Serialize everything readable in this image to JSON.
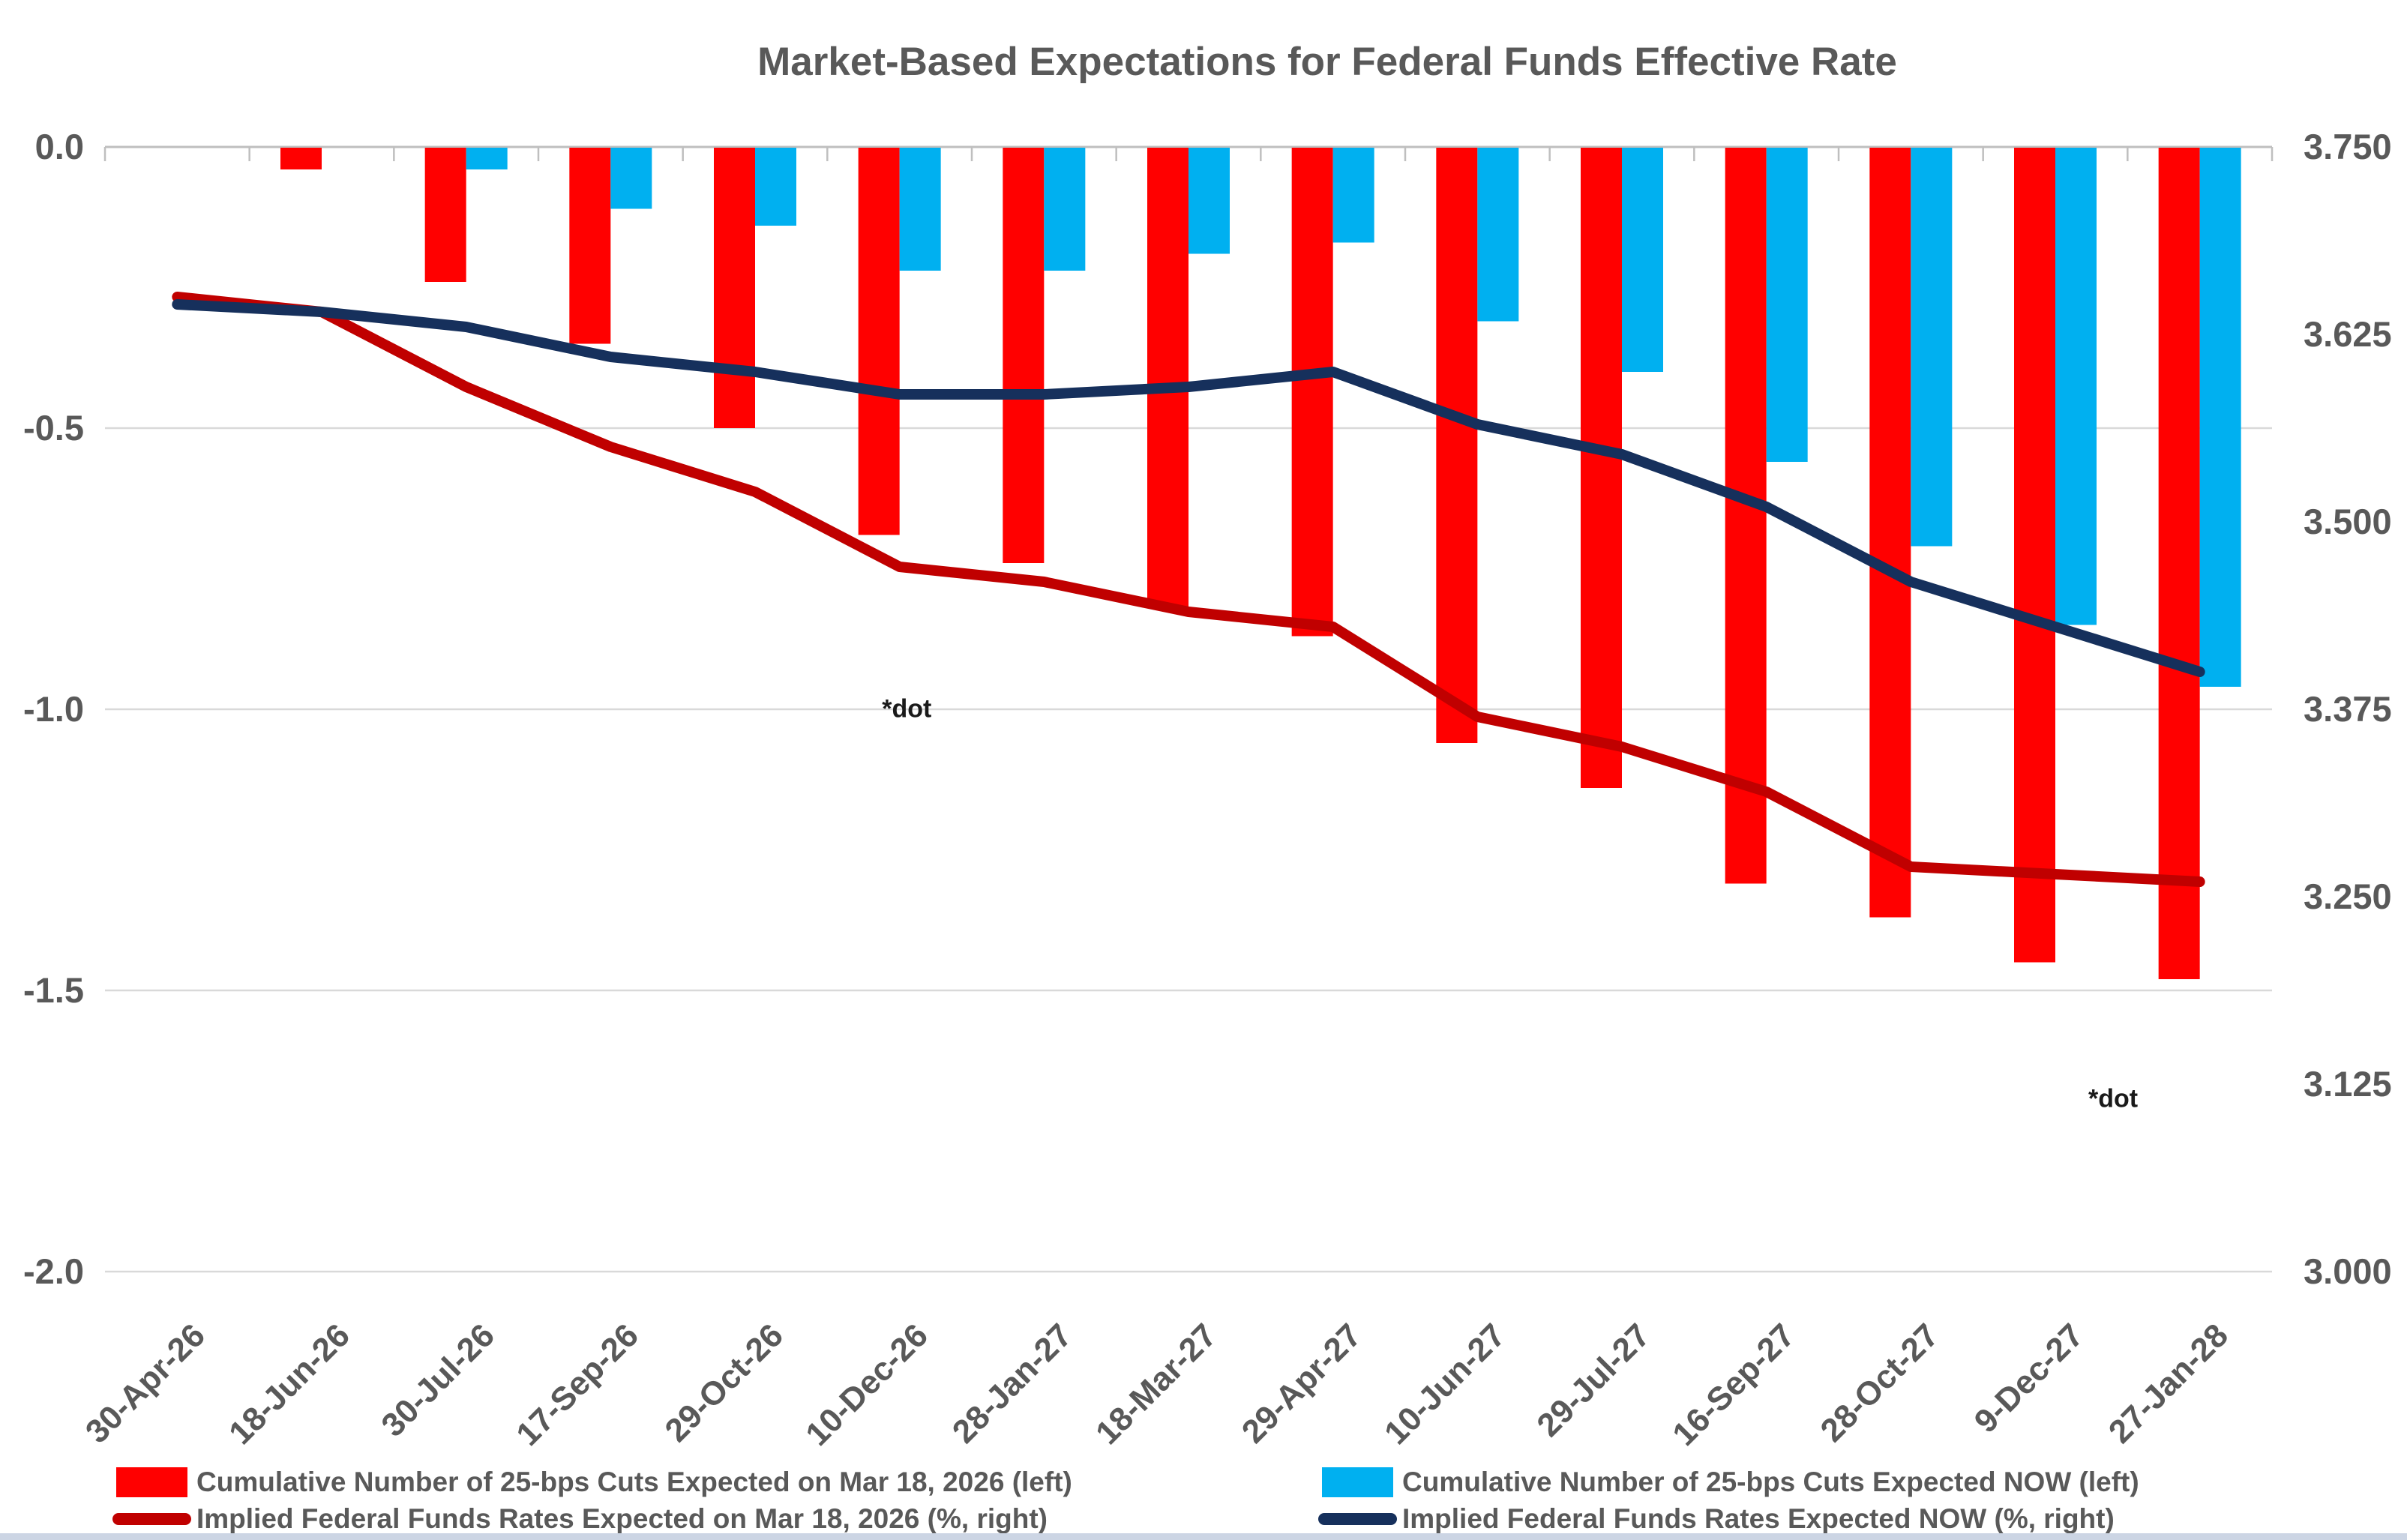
{
  "title": "Market-Based Expectations for Federal Funds Effective Rate",
  "colors": {
    "red_bar": "#FF0000",
    "blue_bar": "#00B0F0",
    "dark_red_line": "#C00000",
    "navy_line": "#16305C",
    "text": "#595959",
    "gridline": "#D9D9D9",
    "axis_line": "#BFBFBF"
  },
  "chart_data": {
    "type": "bar",
    "subtype": "combo-bar-line-dual-axis",
    "title": "Market-Based Expectations for Federal Funds Effective Rate",
    "categories": [
      "30-Apr-26",
      "18-Jun-26",
      "30-Jul-26",
      "17-Sep-26",
      "29-Oct-26",
      "10-Dec-26",
      "28-Jan-27",
      "18-Mar-27",
      "29-Apr-27",
      "10-Jun-27",
      "29-Jul-27",
      "16-Sep-27",
      "28-Oct-27",
      "9-Dec-27",
      "27-Jan-28"
    ],
    "series": [
      {
        "name": "Cumulative Number of 25-bps Cuts Expected on Mar 18, 2026 (left)",
        "type": "bar",
        "axis": "left",
        "color_key": "red_bar",
        "values": [
          0,
          -0.04,
          -0.24,
          -0.35,
          -0.5,
          -0.69,
          -0.74,
          -0.82,
          -0.87,
          -1.06,
          -1.14,
          -1.31,
          -1.37,
          -1.45,
          -1.48
        ]
      },
      {
        "name": "Cumulative Number of 25-bps Cuts Expected NOW (left)",
        "type": "bar",
        "axis": "left",
        "color_key": "blue_bar",
        "values": [
          0,
          0,
          -0.04,
          -0.11,
          -0.14,
          -0.22,
          -0.22,
          -0.19,
          -0.17,
          -0.31,
          -0.4,
          -0.56,
          -0.71,
          -0.85,
          -0.96
        ]
      },
      {
        "name": "Implied Federal Funds Rates Expected on Mar 18, 2026 (%, right)",
        "type": "line",
        "axis": "right",
        "color_key": "dark_red_line",
        "values": [
          3.65,
          3.64,
          3.59,
          3.55,
          3.52,
          3.47,
          3.46,
          3.44,
          3.43,
          3.37,
          3.35,
          3.32,
          3.27,
          3.265,
          3.26
        ]
      },
      {
        "name": "Implied Federal Funds Rates Expected NOW (%, right)",
        "type": "line",
        "axis": "right",
        "color_key": "navy_line",
        "values": [
          3.645,
          3.64,
          3.63,
          3.61,
          3.6,
          3.585,
          3.585,
          3.59,
          3.6,
          3.565,
          3.545,
          3.51,
          3.46,
          3.43,
          3.4
        ]
      }
    ],
    "left_axis": {
      "ticks": [
        "0.0",
        "-0.5",
        "-1.0",
        "-1.5",
        "-2.0"
      ],
      "max": 0.0,
      "min": -2.0
    },
    "right_axis": {
      "ticks": [
        "3.750",
        "3.625",
        "3.500",
        "3.375",
        "3.250",
        "3.125",
        "3.000"
      ],
      "max": 3.75,
      "min": 3.0
    },
    "annotations": [
      {
        "text": "*dot",
        "x_index": 5.05,
        "right_value": 3.375
      },
      {
        "text": "*dot",
        "x_index": 13.4,
        "right_value": 3.115
      }
    ],
    "grid": true,
    "legend_position": "bottom"
  }
}
